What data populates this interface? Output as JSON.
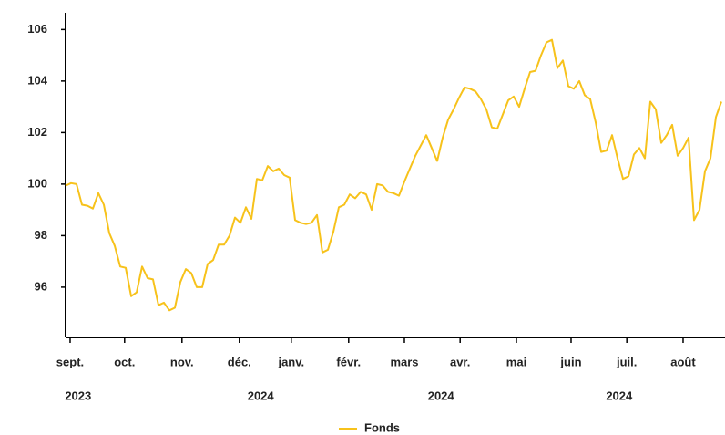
{
  "chart_data": {
    "type": "line",
    "xlim": [
      0,
      120.67
    ],
    "xticks": [
      {
        "value": 0.83,
        "label": "sept."
      },
      {
        "value": 10.8,
        "label": "oct."
      },
      {
        "value": 21.3,
        "label": "nov."
      },
      {
        "value": 31.8,
        "label": "déc."
      },
      {
        "value": 41.3,
        "label": "janv."
      },
      {
        "value": 51.8,
        "label": "févr."
      },
      {
        "value": 62,
        "label": "mars"
      },
      {
        "value": 72.2,
        "label": "avr."
      },
      {
        "value": 82.5,
        "label": "mai"
      },
      {
        "value": 92.5,
        "label": "juin"
      },
      {
        "value": 102.7,
        "label": "juil."
      },
      {
        "value": 113,
        "label": "août"
      }
    ],
    "x2ticks": [
      {
        "value": 2.3,
        "label": "2023"
      },
      {
        "value": 35.7,
        "label": "2024"
      },
      {
        "value": 68.7,
        "label": "2024"
      },
      {
        "value": 101.3,
        "label": "2024"
      }
    ],
    "ylim": [
      94.05,
      106.65
    ],
    "yticks": [
      96,
      98,
      100,
      102,
      104,
      106
    ],
    "grid": false,
    "legend": "bottom",
    "series": [
      {
        "name": "Fonds",
        "color": "#f7c21b",
        "values": [
          99.94,
          100.04,
          100.0,
          99.2,
          99.16,
          99.05,
          99.65,
          99.2,
          98.1,
          97.6,
          96.8,
          96.75,
          95.65,
          95.8,
          96.8,
          96.35,
          96.3,
          95.3,
          95.4,
          95.1,
          95.2,
          96.2,
          96.7,
          96.55,
          96.0,
          96.0,
          96.9,
          97.05,
          97.65,
          97.65,
          98.0,
          98.7,
          98.5,
          99.1,
          98.65,
          100.2,
          100.15,
          100.7,
          100.5,
          100.6,
          100.35,
          100.25,
          98.6,
          98.5,
          98.45,
          98.5,
          98.8,
          97.35,
          97.45,
          98.15,
          99.1,
          99.2,
          99.6,
          99.45,
          99.7,
          99.6,
          99.0,
          100.0,
          99.95,
          99.7,
          99.65,
          99.55,
          100.1,
          100.6,
          101.1,
          101.5,
          101.9,
          101.4,
          100.9,
          101.8,
          102.5,
          102.9,
          103.35,
          103.75,
          103.7,
          103.6,
          103.3,
          102.9,
          102.2,
          102.15,
          102.7,
          103.25,
          103.4,
          103.0,
          103.7,
          104.35,
          104.4,
          105.0,
          105.5,
          105.6,
          104.5,
          104.8,
          103.8,
          103.7,
          104.0,
          103.45,
          103.3,
          102.4,
          101.25,
          101.3,
          101.9,
          101.0,
          100.2,
          100.3,
          101.15,
          101.4,
          101.0,
          103.2,
          102.9,
          101.6,
          101.9,
          102.3,
          101.1,
          101.4,
          101.8,
          98.6,
          99.0,
          100.5,
          101.0,
          102.6,
          103.2
        ]
      }
    ]
  }
}
